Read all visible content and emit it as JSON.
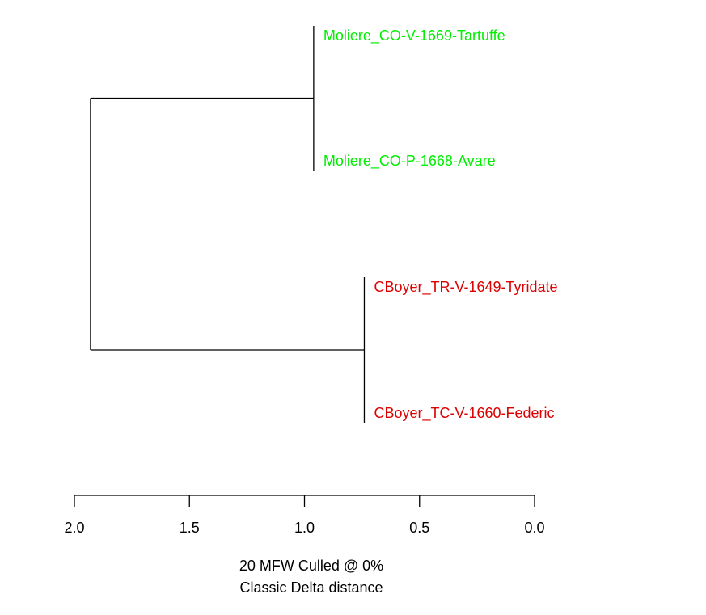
{
  "chart_data": {
    "type": "dendrogram",
    "orientation": "horizontal",
    "xlim": [
      2.0,
      0.0
    ],
    "ticks": [
      {
        "value": 2.0,
        "label": "2.0"
      },
      {
        "value": 1.5,
        "label": "1.5"
      },
      {
        "value": 1.0,
        "label": "1.0"
      },
      {
        "value": 0.5,
        "label": "0.5"
      },
      {
        "value": 0.0,
        "label": "0.0"
      }
    ],
    "leaves": [
      {
        "label": "Moliere_CO-V-1669-Tartuffe",
        "color": "#00ee00"
      },
      {
        "label": "Moliere_CO-P-1668-Avare",
        "color": "#00ee00"
      },
      {
        "label": "CBoyer_TR-V-1649-Tyridate",
        "color": "#dd0000"
      },
      {
        "label": "CBoyer_TC-V-1660-Federic",
        "color": "#dd0000"
      }
    ],
    "merges": [
      {
        "id": "moliere",
        "height": 0.96,
        "children": [
          0,
          1
        ]
      },
      {
        "id": "boyer",
        "height": 0.74,
        "children": [
          2,
          3
        ]
      },
      {
        "id": "root",
        "height": 1.93,
        "children": [
          "moliere",
          "boyer"
        ]
      }
    ],
    "caption_line1": "20 MFW  Culled @ 0%",
    "caption_line2": "Classic Delta distance"
  }
}
